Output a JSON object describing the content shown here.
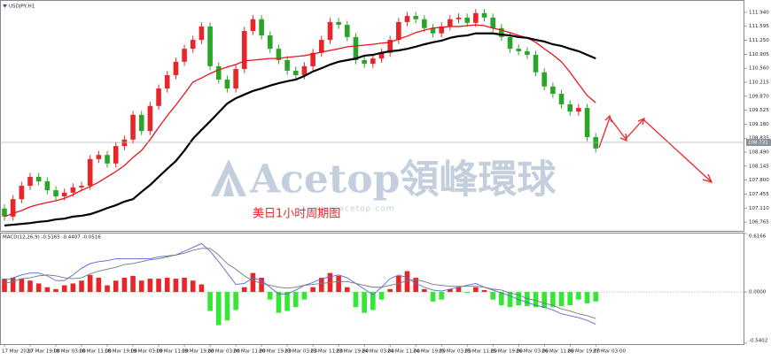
{
  "chart_data": [
    {
      "type": "candlestick",
      "title": "USDJPY,H1",
      "watermark": "Acetop領峰環球",
      "watermark_url": "www.acetop.com",
      "annotation": "美日1小时周期图",
      "categories": [
        "17 Mar 2020",
        null,
        null,
        "17 Mar 19:00",
        null,
        null,
        "18 Mar 03:00",
        null,
        null,
        "18 Mar 11:00",
        null,
        null,
        "18 Mar 19:00",
        null,
        null,
        "19 Mar 03:00",
        null,
        null,
        "19 Mar 11:00",
        null,
        null,
        "19 Mar 19:00",
        null,
        null,
        "20 Mar 03:00",
        null,
        null,
        "20 Mar 11:00",
        null,
        null,
        "20 Mar 19:00",
        null,
        null,
        "23 Mar 03:00",
        null,
        null,
        "23 Mar 11:00",
        null,
        null,
        "23 Mar 19:00",
        null,
        null,
        "24 Mar 03:00",
        null,
        null,
        "24 Mar 11:00",
        null,
        null,
        "24 Mar 19:00",
        null,
        null,
        "25 Mar 03:00",
        null,
        null,
        "25 Mar 11:00",
        null,
        null,
        "25 Mar 19:00",
        null,
        null,
        "26 Mar 03:00",
        null,
        null,
        "26 Mar 11:00",
        null,
        null,
        "26 Mar 19:00",
        null,
        null,
        "27 Mar 03:00"
      ],
      "open": [
        107.1,
        106.9,
        107.33,
        107.66,
        107.88,
        107.77,
        107.55,
        107.4,
        107.49,
        107.62,
        107.66,
        108.32,
        108.42,
        108.21,
        108.64,
        108.8,
        109.41,
        109.01,
        109.63,
        110.06,
        110.39,
        110.72,
        111.04,
        111.26,
        111.59,
        110.61,
        110.28,
        110.06,
        110.54,
        111.48,
        111.77,
        111.37,
        111.04,
        110.76,
        110.5,
        110.39,
        110.61,
        110.94,
        111.26,
        111.7,
        111.63,
        111.33,
        110.76,
        110.67,
        110.8,
        110.94,
        111.26,
        111.7,
        111.85,
        111.77,
        111.55,
        111.42,
        111.59,
        111.77,
        111.81,
        111.68,
        111.92,
        111.81,
        111.55,
        111.33,
        111.04,
        110.98,
        110.89,
        110.46,
        110.11,
        109.93,
        109.67,
        109.49,
        109.58,
        108.86
      ],
      "high": [
        107.2,
        107.43,
        107.76,
        107.98,
        107.98,
        107.87,
        107.65,
        107.59,
        107.72,
        107.76,
        108.42,
        108.52,
        108.52,
        108.74,
        108.9,
        109.51,
        109.51,
        109.73,
        110.16,
        110.49,
        110.82,
        111.14,
        111.36,
        111.69,
        111.69,
        110.71,
        110.38,
        110.64,
        111.58,
        111.87,
        111.87,
        111.47,
        111.14,
        110.86,
        110.6,
        110.71,
        111.04,
        111.36,
        111.8,
        111.8,
        111.73,
        111.43,
        110.86,
        110.9,
        111.04,
        111.36,
        111.8,
        111.95,
        111.95,
        111.87,
        111.65,
        111.69,
        111.87,
        111.91,
        111.91,
        112.02,
        112.02,
        111.91,
        111.65,
        111.43,
        111.14,
        111.08,
        110.99,
        110.56,
        110.21,
        110.03,
        109.77,
        109.68,
        109.68,
        108.96
      ],
      "low": [
        106.8,
        106.8,
        107.23,
        107.56,
        107.67,
        107.45,
        107.3,
        107.3,
        107.39,
        107.52,
        107.56,
        108.22,
        108.11,
        108.11,
        108.54,
        108.7,
        108.91,
        108.91,
        109.53,
        109.96,
        110.29,
        110.62,
        110.94,
        111.16,
        110.51,
        110.18,
        109.96,
        109.96,
        110.44,
        111.38,
        111.27,
        110.94,
        110.66,
        110.4,
        110.29,
        110.29,
        110.51,
        110.84,
        111.16,
        111.53,
        111.23,
        110.66,
        110.57,
        110.57,
        110.7,
        110.84,
        111.16,
        111.6,
        111.67,
        111.45,
        111.32,
        111.32,
        111.49,
        111.67,
        111.58,
        111.58,
        111.71,
        111.45,
        111.23,
        110.94,
        110.88,
        110.79,
        110.36,
        110.01,
        109.83,
        109.57,
        109.39,
        109.39,
        108.76,
        108.48
      ],
      "close": [
        106.9,
        107.33,
        107.66,
        107.88,
        107.77,
        107.55,
        107.4,
        107.49,
        107.62,
        107.66,
        108.32,
        108.42,
        108.21,
        108.64,
        108.8,
        109.41,
        109.01,
        109.63,
        110.06,
        110.39,
        110.72,
        111.04,
        111.26,
        111.59,
        110.61,
        110.28,
        110.06,
        110.54,
        111.48,
        111.77,
        111.37,
        111.04,
        110.76,
        110.5,
        110.39,
        110.61,
        110.94,
        111.26,
        111.7,
        111.63,
        111.33,
        110.76,
        110.67,
        110.8,
        110.94,
        111.26,
        111.7,
        111.85,
        111.77,
        111.55,
        111.42,
        111.59,
        111.77,
        111.81,
        111.68,
        111.92,
        111.81,
        111.55,
        111.33,
        111.04,
        110.98,
        110.89,
        110.46,
        110.11,
        109.93,
        109.67,
        109.49,
        109.58,
        108.86,
        108.58
      ],
      "up_color": "#e8262a",
      "down_color": "#2aa52a",
      "lines": [
        {
          "color": "#e8161c",
          "values": [
            106.9,
            106.98,
            107.05,
            107.14,
            107.2,
            107.25,
            107.29,
            107.35,
            107.44,
            107.55,
            107.64,
            107.75,
            107.88,
            108.01,
            108.16,
            108.36,
            108.53,
            108.8,
            109.1,
            109.39,
            109.65,
            109.93,
            110.22,
            110.32,
            110.43,
            110.52,
            110.59,
            110.65,
            110.74,
            110.76,
            110.78,
            110.8,
            110.8,
            110.83,
            110.85,
            110.87,
            110.91,
            110.96,
            111.0,
            111.04,
            111.09,
            111.11,
            111.13,
            111.15,
            111.18,
            111.2,
            111.28,
            111.35,
            111.44,
            111.5,
            111.55,
            111.57,
            111.59,
            111.59,
            111.61,
            111.63,
            111.61,
            111.55,
            111.5,
            111.44,
            111.37,
            111.31,
            111.2,
            111.04,
            110.89,
            110.72,
            110.46,
            110.17,
            109.89,
            109.71
          ]
        },
        {
          "color": "#000000",
          "values": [
            106.68,
            106.7,
            106.72,
            106.74,
            106.77,
            106.79,
            106.83,
            106.85,
            106.9,
            106.92,
            106.96,
            107.03,
            107.11,
            107.18,
            107.27,
            107.33,
            107.51,
            107.68,
            107.88,
            108.08,
            108.27,
            108.53,
            108.82,
            109.04,
            109.25,
            109.47,
            109.69,
            109.82,
            109.91,
            110.0,
            110.06,
            110.13,
            110.19,
            110.24,
            110.28,
            110.37,
            110.48,
            110.56,
            110.65,
            110.72,
            110.76,
            110.8,
            110.87,
            110.89,
            110.94,
            110.98,
            111.0,
            111.04,
            111.09,
            111.15,
            111.2,
            111.24,
            111.31,
            111.35,
            111.37,
            111.42,
            111.42,
            111.42,
            111.39,
            111.37,
            111.33,
            111.31,
            111.26,
            111.22,
            111.15,
            111.11,
            111.04,
            110.98,
            110.89,
            110.8
          ]
        }
      ],
      "last_price": 108.731,
      "ylim": [
        106.57,
        112.2
      ],
      "yticks": [
        106.765,
        {
          "value": 107.11,
          "label": "107.110"
        },
        107.455,
        {
          "value": 107.8,
          "label": "107.800"
        },
        108.145,
        {
          "value": 108.49,
          "label": "108.490"
        },
        108.835,
        {
          "value": 109.18,
          "label": "109.180"
        },
        109.525,
        {
          "value": 109.87,
          "label": "109.870"
        },
        110.215,
        {
          "value": 110.56,
          "label": "110.560"
        },
        110.905,
        {
          "value": 111.25,
          "label": "111.250"
        },
        111.595,
        {
          "value": 111.94,
          "label": "111.940"
        }
      ]
    },
    {
      "type": "macd",
      "title": "MACD(12,26,9) -0.5165 -0.4407 -0.0516",
      "pos_color": "#e8262a",
      "neg_color": "#33e833",
      "values": [
        0.14,
        0.15,
        0.14,
        0.12,
        0.09,
        0.05,
        0.03,
        0.07,
        0.09,
        0.12,
        0.18,
        0.15,
        0.07,
        0.12,
        0.15,
        0.17,
        0.12,
        0.14,
        0.14,
        0.15,
        0.14,
        0.15,
        0.12,
        0.08,
        -0.2,
        -0.35,
        -0.3,
        -0.19,
        0.05,
        0.2,
        0.15,
        -0.08,
        -0.22,
        -0.2,
        -0.16,
        -0.08,
        0.05,
        0.15,
        0.2,
        0.17,
        0.05,
        -0.16,
        -0.22,
        -0.19,
        -0.08,
        0.03,
        0.17,
        0.22,
        0.15,
        0.03,
        -0.1,
        -0.08,
        0.03,
        0.05,
        -0.01,
        0.05,
        0.02,
        -0.08,
        -0.14,
        -0.16,
        -0.14,
        -0.15,
        -0.16,
        -0.17,
        -0.16,
        -0.15,
        -0.14,
        -0.08,
        -0.12,
        -0.1
      ],
      "lines": [
        {
          "color": "#5566dd",
          "values": [
            0.12,
            0.15,
            0.18,
            0.2,
            0.2,
            0.17,
            0.12,
            0.12,
            0.18,
            0.25,
            0.3,
            0.32,
            0.33,
            0.35,
            0.35,
            0.35,
            0.35,
            0.35,
            0.37,
            0.38,
            0.39,
            0.43,
            0.47,
            0.51,
            0.43,
            0.32,
            0.2,
            0.08,
            0.09,
            0.15,
            0.12,
            0.05,
            -0.02,
            -0.02,
            0.02,
            0.07,
            0.1,
            0.14,
            0.16,
            0.18,
            0.15,
            0.09,
            0.03,
            -0.03,
            0.05,
            0.14,
            0.18,
            0.15,
            0.09,
            0.05,
            0.02,
            0.01,
            0.03,
            0.05,
            0.07,
            0.09,
            0.05,
            0.02,
            -0.01,
            -0.04,
            -0.08,
            -0.11,
            -0.14,
            -0.16,
            -0.19,
            -0.23,
            -0.25,
            -0.27,
            -0.3,
            -0.34
          ]
        },
        {
          "color": "#777777",
          "values": [
            0.09,
            0.11,
            0.14,
            0.15,
            0.17,
            0.18,
            0.17,
            0.15,
            0.14,
            0.15,
            0.19,
            0.22,
            0.24,
            0.26,
            0.29,
            0.3,
            0.32,
            0.34,
            0.35,
            0.37,
            0.39,
            0.41,
            0.44,
            0.46,
            0.46,
            0.39,
            0.3,
            0.24,
            0.17,
            0.12,
            0.09,
            0.07,
            0.05,
            0.04,
            0.05,
            0.07,
            0.08,
            0.09,
            0.1,
            0.11,
            0.11,
            0.09,
            0.07,
            0.05,
            0.05,
            0.07,
            0.09,
            0.12,
            0.13,
            0.11,
            0.08,
            0.07,
            0.06,
            0.06,
            0.06,
            0.06,
            0.05,
            0.03,
            0.02,
            -0.01,
            -0.03,
            -0.07,
            -0.09,
            -0.12,
            -0.14,
            -0.18,
            -0.2,
            -0.23,
            -0.25,
            -0.28
          ]
        }
      ],
      "ylim": [
        -0.5402,
        0.6166
      ],
      "yticks": [
        -0.5402,
        {
          "value": 0,
          "label": "0.0000"
        },
        0.6166
      ]
    }
  ]
}
